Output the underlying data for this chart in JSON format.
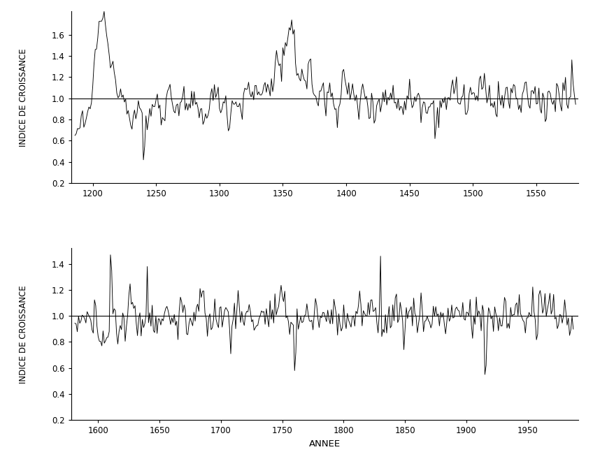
{
  "ylabel": "INDICE DE CROISSANCE",
  "xlabel": "ANNEE",
  "year_start": 1186,
  "year_end": 1987,
  "split_year": 1581,
  "panel1_xlim": [
    1183,
    1583
  ],
  "panel2_xlim": [
    1578,
    1991
  ],
  "ylim1": [
    0.2,
    1.82
  ],
  "ylim2": [
    0.2,
    1.52
  ],
  "yticks1": [
    0.2,
    0.4,
    0.6,
    0.8,
    1.0,
    1.2,
    1.4,
    1.6
  ],
  "yticks2": [
    0.2,
    0.4,
    0.6,
    0.8,
    1.0,
    1.2,
    1.4
  ],
  "xticks1": [
    1200,
    1250,
    1300,
    1350,
    1400,
    1450,
    1500,
    1550
  ],
  "xticks2": [
    1600,
    1650,
    1700,
    1750,
    1800,
    1850,
    1900,
    1950
  ],
  "hline_y": 1.0,
  "line_color": "#000000",
  "background_color": "#ffffff",
  "seed": 12345
}
